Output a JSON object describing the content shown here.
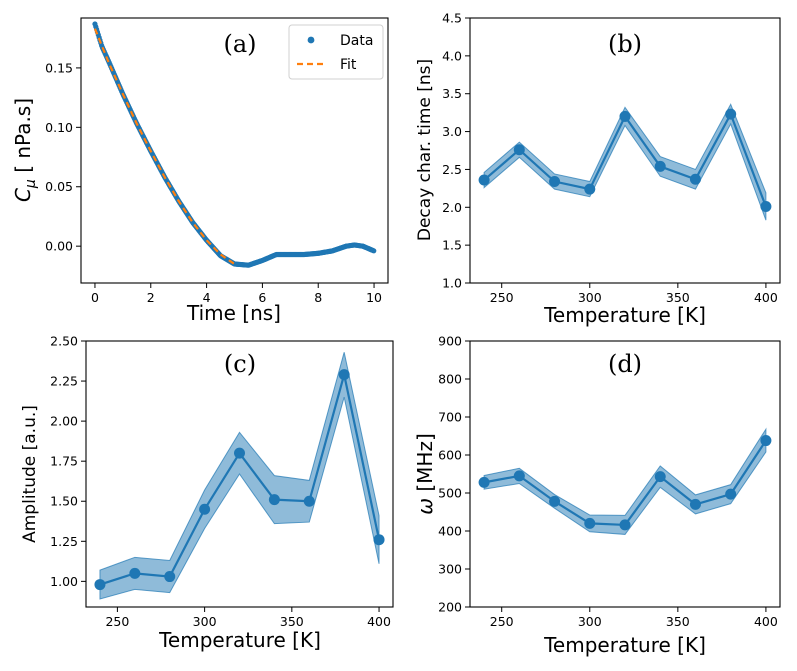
{
  "colors": {
    "series": "#1f77b4",
    "band": "#1f77b4",
    "fit": "#ff7f0e"
  },
  "chart_data": [
    {
      "id": "a",
      "type": "scatter",
      "panel_tag": "(a)",
      "xlabel": "Time [ns]",
      "ylabel_main": "C",
      "ylabel_sub": "μ",
      "ylabel_rest": " [ nPa.s]",
      "xlim": [
        -0.5,
        10.5
      ],
      "ylim": [
        -0.031,
        0.192
      ],
      "xticks": [
        0,
        2,
        4,
        6,
        8,
        10
      ],
      "xtick_labels": [
        "0",
        "2",
        "4",
        "6",
        "8",
        "10"
      ],
      "yticks": [
        0.0,
        0.05,
        0.1,
        0.15
      ],
      "ytick_labels": [
        "0.00",
        "0.05",
        "0.10",
        "0.15"
      ],
      "legend": {
        "position": "top-right",
        "entries": [
          "Data",
          "Fit"
        ]
      },
      "data_curve": {
        "x": [
          0,
          0.25,
          0.5,
          1,
          1.5,
          2,
          2.5,
          3,
          3.5,
          4,
          4.5,
          5,
          5.5,
          6,
          6.5,
          7,
          7.5,
          8,
          8.5,
          9,
          9.3,
          9.6,
          10
        ],
        "y": [
          0.187,
          0.168,
          0.155,
          0.128,
          0.103,
          0.08,
          0.058,
          0.038,
          0.02,
          0.005,
          -0.008,
          -0.015,
          -0.016,
          -0.012,
          -0.007,
          -0.007,
          -0.007,
          -0.006,
          -0.004,
          0.0,
          0.001,
          0.0,
          -0.004
        ]
      },
      "fit_curve": {
        "x": [
          0,
          0.5,
          1,
          1.5,
          2,
          2.5,
          3,
          3.5,
          4,
          4.5,
          5
        ],
        "y": [
          0.183,
          0.154,
          0.128,
          0.103,
          0.08,
          0.058,
          0.038,
          0.02,
          0.005,
          -0.007,
          -0.015
        ]
      }
    },
    {
      "id": "b",
      "type": "line",
      "panel_tag": "(b)",
      "xlabel": "Temperature [K]",
      "ylabel": "Decay char. time [ns]",
      "xlim": [
        232,
        408
      ],
      "ylim": [
        1.0,
        4.5
      ],
      "xticks": [
        250,
        300,
        350,
        400
      ],
      "xtick_labels": [
        "250",
        "300",
        "350",
        "400"
      ],
      "yticks": [
        1.0,
        1.5,
        2.0,
        2.5,
        3.0,
        3.5,
        4.0,
        4.5
      ],
      "ytick_labels": [
        "1.0",
        "1.5",
        "2.0",
        "2.5",
        "3.0",
        "3.5",
        "4.0",
        "4.5"
      ],
      "x": [
        240,
        260,
        280,
        300,
        320,
        340,
        360,
        380,
        400
      ],
      "y": [
        2.36,
        2.76,
        2.34,
        2.24,
        3.2,
        2.54,
        2.37,
        3.23,
        2.01
      ],
      "err": [
        0.1,
        0.1,
        0.1,
        0.1,
        0.12,
        0.13,
        0.13,
        0.13,
        0.18
      ]
    },
    {
      "id": "c",
      "type": "line",
      "panel_tag": "(c)",
      "xlabel": "Temperature [K]",
      "ylabel": "Amplitude [a.u.]",
      "xlim": [
        232,
        408
      ],
      "ylim": [
        0.84,
        2.5
      ],
      "xticks": [
        250,
        300,
        350,
        400
      ],
      "xtick_labels": [
        "250",
        "300",
        "350",
        "400"
      ],
      "yticks": [
        1.0,
        1.25,
        1.5,
        1.75,
        2.0,
        2.25,
        2.5
      ],
      "ytick_labels": [
        "1.00",
        "1.25",
        "1.50",
        "1.75",
        "2.00",
        "2.25",
        "2.50"
      ],
      "x": [
        240,
        260,
        280,
        300,
        320,
        340,
        360,
        380,
        400
      ],
      "y": [
        0.98,
        1.05,
        1.03,
        1.45,
        1.8,
        1.51,
        1.5,
        2.29,
        1.26
      ],
      "err": [
        0.09,
        0.1,
        0.1,
        0.12,
        0.13,
        0.15,
        0.13,
        0.14,
        0.15
      ]
    },
    {
      "id": "d",
      "type": "line",
      "panel_tag": "(d)",
      "xlabel": "Temperature [K]",
      "ylabel_main": "ω",
      "ylabel_rest": " [MHz]",
      "xlim": [
        232,
        408
      ],
      "ylim": [
        200,
        900
      ],
      "xticks": [
        250,
        300,
        350,
        400
      ],
      "xtick_labels": [
        "250",
        "300",
        "350",
        "400"
      ],
      "yticks": [
        200,
        300,
        400,
        500,
        600,
        700,
        800,
        900
      ],
      "ytick_labels": [
        "200",
        "300",
        "400",
        "500",
        "600",
        "700",
        "800",
        "900"
      ],
      "x": [
        240,
        260,
        280,
        300,
        320,
        340,
        360,
        380,
        400
      ],
      "y": [
        528,
        545,
        478,
        420,
        416,
        543,
        470,
        497,
        638
      ],
      "err": [
        18,
        20,
        18,
        22,
        25,
        28,
        25,
        25,
        30
      ]
    }
  ]
}
